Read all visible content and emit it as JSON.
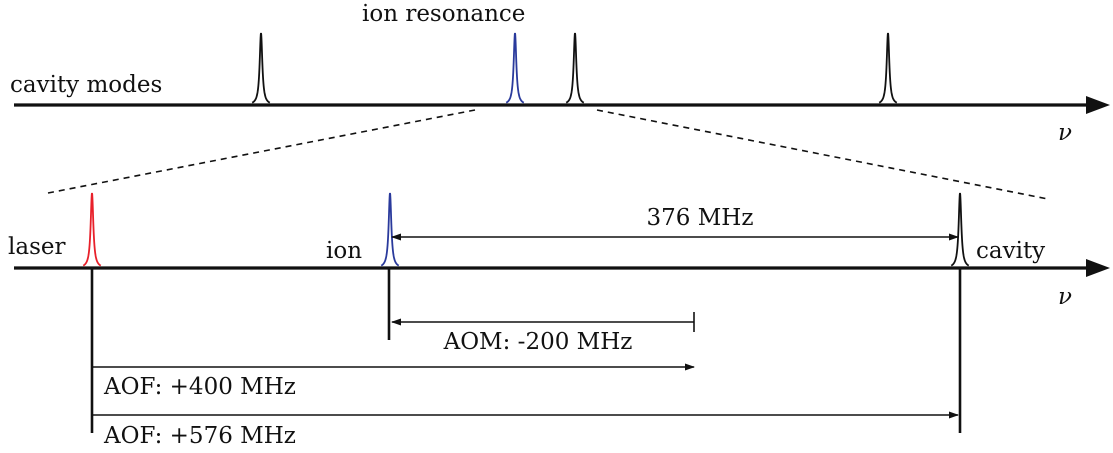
{
  "top": {
    "label_cavity_modes": "cavity modes",
    "label_ion_resonance": "ion resonance",
    "axis_symbol": "ν"
  },
  "bottom": {
    "label_laser": "laser",
    "label_ion": "ion",
    "label_cavity": "cavity",
    "axis_symbol": "ν",
    "span_ion_cavity": "376 MHz",
    "aom": "AOM: -200 MHz",
    "aof_400": "AOF: +400 MHz",
    "aof_576": "AOF: +576 MHz"
  },
  "colors": {
    "laser": "#e8202a",
    "ion": "#2a3a9c",
    "cavity": "#111111"
  }
}
